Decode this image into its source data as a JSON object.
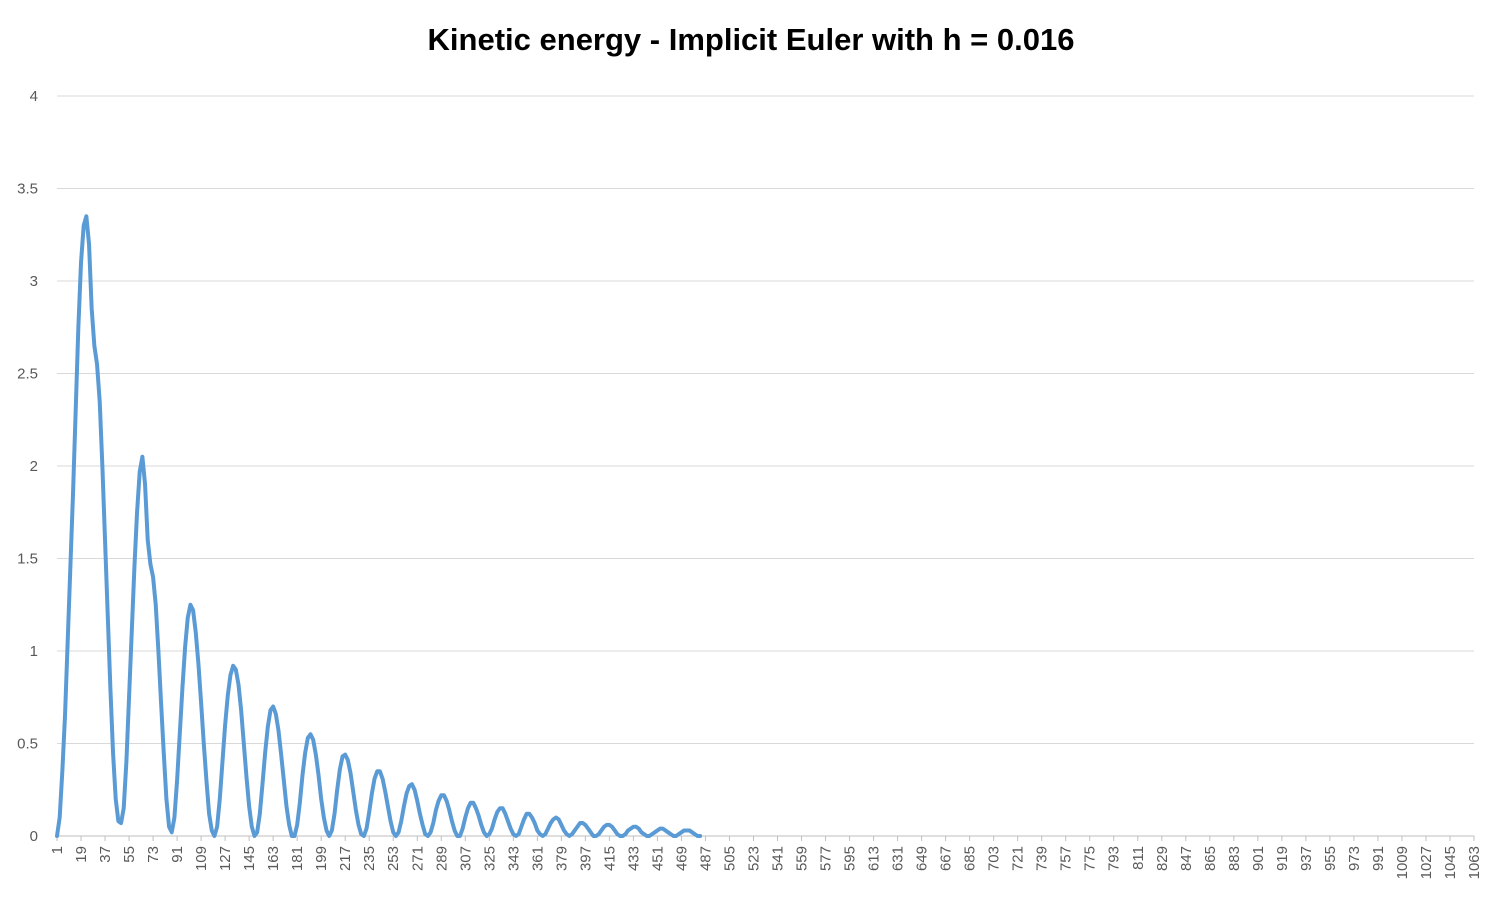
{
  "chart_data": {
    "type": "line",
    "title": "Kinetic energy - Implicit Euler with h = 0.016",
    "xlabel": "",
    "ylabel": "",
    "ylim": [
      0,
      4
    ],
    "yticks": [
      0,
      0.5,
      1,
      1.5,
      2,
      2.5,
      3,
      3.5,
      4
    ],
    "ytick_labels": [
      "0",
      "0.5",
      "1",
      "1.5",
      "2",
      "2.5",
      "3",
      "3.5",
      "4"
    ],
    "xlim": [
      1,
      1063
    ],
    "xtick_labels": [
      "1",
      "19",
      "37",
      "55",
      "73",
      "91",
      "109",
      "127",
      "145",
      "163",
      "181",
      "199",
      "217",
      "235",
      "253",
      "271",
      "289",
      "307",
      "325",
      "343",
      "361",
      "379",
      "397",
      "415",
      "433",
      "451",
      "469",
      "487",
      "505",
      "523",
      "541",
      "559",
      "577",
      "595",
      "613",
      "631",
      "649",
      "667",
      "685",
      "703",
      "721",
      "739",
      "757",
      "775",
      "793",
      "811",
      "829",
      "847",
      "865",
      "883",
      "901",
      "919",
      "937",
      "955",
      "973",
      "991",
      "1009",
      "1027",
      "1045",
      "1063"
    ],
    "grid": "horizontal",
    "line_color": "#5B9BD5",
    "series": [
      {
        "points": [
          [
            1,
            0
          ],
          [
            3,
            0.1
          ],
          [
            5,
            0.35
          ],
          [
            7,
            0.65
          ],
          [
            9,
            1.05
          ],
          [
            11,
            1.45
          ],
          [
            13,
            1.85
          ],
          [
            15,
            2.3
          ],
          [
            17,
            2.75
          ],
          [
            19,
            3.1
          ],
          [
            21,
            3.3
          ],
          [
            23,
            3.35
          ],
          [
            25,
            3.2
          ],
          [
            27,
            2.85
          ],
          [
            29,
            2.65
          ],
          [
            31,
            2.55
          ],
          [
            33,
            2.35
          ],
          [
            35,
            2.0
          ],
          [
            37,
            1.6
          ],
          [
            39,
            1.2
          ],
          [
            41,
            0.8
          ],
          [
            43,
            0.45
          ],
          [
            45,
            0.2
          ],
          [
            47,
            0.08
          ],
          [
            49,
            0.07
          ],
          [
            51,
            0.15
          ],
          [
            53,
            0.4
          ],
          [
            55,
            0.75
          ],
          [
            57,
            1.1
          ],
          [
            59,
            1.45
          ],
          [
            61,
            1.75
          ],
          [
            63,
            1.97
          ],
          [
            65,
            2.05
          ],
          [
            67,
            1.9
          ],
          [
            69,
            1.6
          ],
          [
            71,
            1.47
          ],
          [
            73,
            1.4
          ],
          [
            75,
            1.25
          ],
          [
            77,
            1.0
          ],
          [
            79,
            0.72
          ],
          [
            81,
            0.45
          ],
          [
            83,
            0.2
          ],
          [
            85,
            0.05
          ],
          [
            87,
            0.02
          ],
          [
            89,
            0.1
          ],
          [
            91,
            0.3
          ],
          [
            93,
            0.55
          ],
          [
            95,
            0.8
          ],
          [
            97,
            1.02
          ],
          [
            99,
            1.18
          ],
          [
            101,
            1.25
          ],
          [
            103,
            1.22
          ],
          [
            105,
            1.1
          ],
          [
            107,
            0.93
          ],
          [
            109,
            0.72
          ],
          [
            111,
            0.5
          ],
          [
            113,
            0.3
          ],
          [
            115,
            0.12
          ],
          [
            117,
            0.03
          ],
          [
            119,
            0.0
          ],
          [
            121,
            0.05
          ],
          [
            123,
            0.2
          ],
          [
            125,
            0.4
          ],
          [
            127,
            0.6
          ],
          [
            129,
            0.76
          ],
          [
            131,
            0.87
          ],
          [
            133,
            0.92
          ],
          [
            135,
            0.9
          ],
          [
            137,
            0.82
          ],
          [
            139,
            0.68
          ],
          [
            141,
            0.5
          ],
          [
            143,
            0.32
          ],
          [
            145,
            0.16
          ],
          [
            147,
            0.05
          ],
          [
            149,
            0.0
          ],
          [
            151,
            0.02
          ],
          [
            153,
            0.12
          ],
          [
            155,
            0.28
          ],
          [
            157,
            0.45
          ],
          [
            159,
            0.59
          ],
          [
            161,
            0.68
          ],
          [
            163,
            0.7
          ],
          [
            165,
            0.66
          ],
          [
            167,
            0.57
          ],
          [
            169,
            0.44
          ],
          [
            171,
            0.3
          ],
          [
            173,
            0.16
          ],
          [
            175,
            0.06
          ],
          [
            177,
            0.0
          ],
          [
            179,
            0.0
          ],
          [
            181,
            0.06
          ],
          [
            183,
            0.18
          ],
          [
            185,
            0.33
          ],
          [
            187,
            0.45
          ],
          [
            189,
            0.53
          ],
          [
            191,
            0.55
          ],
          [
            193,
            0.52
          ],
          [
            195,
            0.44
          ],
          [
            197,
            0.33
          ],
          [
            199,
            0.2
          ],
          [
            201,
            0.1
          ],
          [
            203,
            0.03
          ],
          [
            205,
            0.0
          ],
          [
            207,
            0.03
          ],
          [
            209,
            0.12
          ],
          [
            211,
            0.25
          ],
          [
            213,
            0.36
          ],
          [
            215,
            0.43
          ],
          [
            217,
            0.44
          ],
          [
            219,
            0.41
          ],
          [
            221,
            0.34
          ],
          [
            223,
            0.24
          ],
          [
            225,
            0.14
          ],
          [
            227,
            0.06
          ],
          [
            229,
            0.01
          ],
          [
            231,
            0.0
          ],
          [
            233,
            0.04
          ],
          [
            235,
            0.13
          ],
          [
            237,
            0.23
          ],
          [
            239,
            0.31
          ],
          [
            241,
            0.35
          ],
          [
            243,
            0.35
          ],
          [
            245,
            0.31
          ],
          [
            247,
            0.24
          ],
          [
            249,
            0.16
          ],
          [
            251,
            0.08
          ],
          [
            253,
            0.02
          ],
          [
            255,
            0.0
          ],
          [
            257,
            0.02
          ],
          [
            259,
            0.08
          ],
          [
            261,
            0.16
          ],
          [
            263,
            0.23
          ],
          [
            265,
            0.27
          ],
          [
            267,
            0.28
          ],
          [
            269,
            0.25
          ],
          [
            271,
            0.19
          ],
          [
            273,
            0.12
          ],
          [
            275,
            0.06
          ],
          [
            277,
            0.01
          ],
          [
            279,
            0.0
          ],
          [
            281,
            0.02
          ],
          [
            283,
            0.07
          ],
          [
            285,
            0.14
          ],
          [
            287,
            0.19
          ],
          [
            289,
            0.22
          ],
          [
            291,
            0.22
          ],
          [
            293,
            0.19
          ],
          [
            295,
            0.14
          ],
          [
            297,
            0.08
          ],
          [
            299,
            0.03
          ],
          [
            301,
            0.0
          ],
          [
            303,
            0.0
          ],
          [
            305,
            0.04
          ],
          [
            307,
            0.1
          ],
          [
            309,
            0.15
          ],
          [
            311,
            0.18
          ],
          [
            313,
            0.18
          ],
          [
            315,
            0.15
          ],
          [
            317,
            0.11
          ],
          [
            319,
            0.06
          ],
          [
            321,
            0.02
          ],
          [
            323,
            0.0
          ],
          [
            325,
            0.01
          ],
          [
            327,
            0.04
          ],
          [
            329,
            0.09
          ],
          [
            331,
            0.13
          ],
          [
            333,
            0.15
          ],
          [
            335,
            0.15
          ],
          [
            337,
            0.12
          ],
          [
            339,
            0.08
          ],
          [
            341,
            0.04
          ],
          [
            343,
            0.01
          ],
          [
            345,
            0.0
          ],
          [
            347,
            0.01
          ],
          [
            349,
            0.05
          ],
          [
            351,
            0.09
          ],
          [
            353,
            0.12
          ],
          [
            355,
            0.12
          ],
          [
            357,
            0.1
          ],
          [
            359,
            0.07
          ],
          [
            361,
            0.03
          ],
          [
            363,
            0.01
          ],
          [
            365,
            0.0
          ],
          [
            367,
            0.01
          ],
          [
            369,
            0.04
          ],
          [
            371,
            0.07
          ],
          [
            373,
            0.09
          ],
          [
            375,
            0.1
          ],
          [
            377,
            0.09
          ],
          [
            379,
            0.06
          ],
          [
            381,
            0.03
          ],
          [
            383,
            0.01
          ],
          [
            385,
            0.0
          ],
          [
            387,
            0.01
          ],
          [
            389,
            0.03
          ],
          [
            391,
            0.05
          ],
          [
            393,
            0.07
          ],
          [
            395,
            0.07
          ],
          [
            397,
            0.06
          ],
          [
            399,
            0.04
          ],
          [
            401,
            0.02
          ],
          [
            403,
            0.0
          ],
          [
            405,
            0.0
          ],
          [
            407,
            0.01
          ],
          [
            409,
            0.03
          ],
          [
            411,
            0.05
          ],
          [
            413,
            0.06
          ],
          [
            415,
            0.06
          ],
          [
            417,
            0.05
          ],
          [
            419,
            0.03
          ],
          [
            421,
            0.01
          ],
          [
            423,
            0.0
          ],
          [
            425,
            0.0
          ],
          [
            427,
            0.01
          ],
          [
            429,
            0.03
          ],
          [
            431,
            0.04
          ],
          [
            433,
            0.05
          ],
          [
            435,
            0.05
          ],
          [
            437,
            0.04
          ],
          [
            439,
            0.02
          ],
          [
            441,
            0.01
          ],
          [
            443,
            0.0
          ],
          [
            445,
            0.0
          ],
          [
            447,
            0.01
          ],
          [
            449,
            0.02
          ],
          [
            451,
            0.03
          ],
          [
            453,
            0.04
          ],
          [
            455,
            0.04
          ],
          [
            457,
            0.03
          ],
          [
            459,
            0.02
          ],
          [
            461,
            0.01
          ],
          [
            463,
            0.0
          ],
          [
            465,
            0.0
          ],
          [
            467,
            0.01
          ],
          [
            469,
            0.02
          ],
          [
            471,
            0.03
          ],
          [
            473,
            0.03
          ],
          [
            475,
            0.03
          ],
          [
            477,
            0.02
          ],
          [
            479,
            0.01
          ],
          [
            481,
            0.0
          ],
          [
            483,
            0.0
          ]
        ]
      }
    ]
  }
}
